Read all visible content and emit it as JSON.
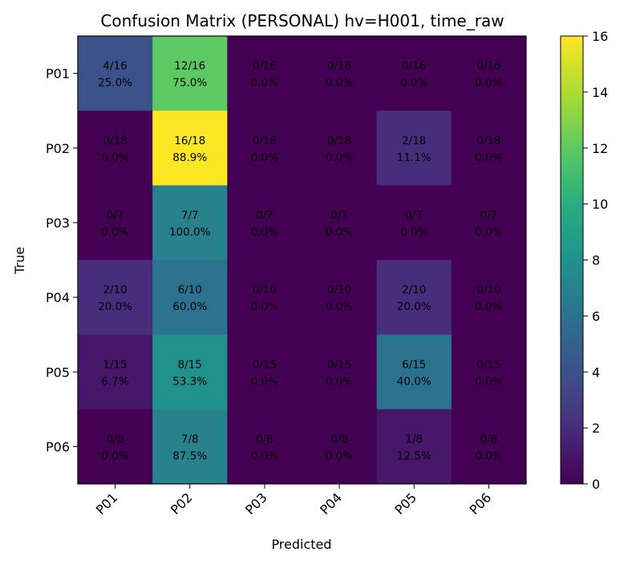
{
  "chart_data": {
    "type": "heatmap",
    "title": "Confusion Matrix (PERSONAL) hv=H001, time_raw",
    "xlabel": "Predicted",
    "ylabel": "True",
    "x_categories": [
      "P01",
      "P02",
      "P03",
      "P04",
      "P05",
      "P06"
    ],
    "y_categories": [
      "P01",
      "P02",
      "P03",
      "P04",
      "P05",
      "P06"
    ],
    "values": [
      [
        4,
        12,
        0,
        0,
        0,
        0
      ],
      [
        0,
        16,
        0,
        0,
        2,
        0
      ],
      [
        0,
        7,
        0,
        0,
        0,
        0
      ],
      [
        2,
        6,
        0,
        0,
        2,
        0
      ],
      [
        1,
        8,
        0,
        0,
        6,
        0
      ],
      [
        0,
        7,
        0,
        0,
        1,
        0
      ]
    ],
    "cell_labels": [
      [
        [
          "4/16",
          "25.0%"
        ],
        [
          "12/16",
          "75.0%"
        ],
        [
          "0/16",
          "0.0%"
        ],
        [
          "0/16",
          "0.0%"
        ],
        [
          "0/16",
          "0.0%"
        ],
        [
          "0/16",
          "0.0%"
        ]
      ],
      [
        [
          "0/18",
          "0.0%"
        ],
        [
          "16/18",
          "88.9%"
        ],
        [
          "0/18",
          "0.0%"
        ],
        [
          "0/18",
          "0.0%"
        ],
        [
          "2/18",
          "11.1%"
        ],
        [
          "0/18",
          "0.0%"
        ]
      ],
      [
        [
          "0/7",
          "0.0%"
        ],
        [
          "7/7",
          "100.0%"
        ],
        [
          "0/7",
          "0.0%"
        ],
        [
          "0/7",
          "0.0%"
        ],
        [
          "0/7",
          "0.0%"
        ],
        [
          "0/7",
          "0.0%"
        ]
      ],
      [
        [
          "2/10",
          "20.0%"
        ],
        [
          "6/10",
          "60.0%"
        ],
        [
          "0/10",
          "0.0%"
        ],
        [
          "0/10",
          "0.0%"
        ],
        [
          "2/10",
          "20.0%"
        ],
        [
          "0/10",
          "0.0%"
        ]
      ],
      [
        [
          "1/15",
          "6.7%"
        ],
        [
          "8/15",
          "53.3%"
        ],
        [
          "0/15",
          "0.0%"
        ],
        [
          "0/15",
          "0.0%"
        ],
        [
          "6/15",
          "40.0%"
        ],
        [
          "0/15",
          "0.0%"
        ]
      ],
      [
        [
          "0/8",
          "0.0%"
        ],
        [
          "7/8",
          "87.5%"
        ],
        [
          "0/8",
          "0.0%"
        ],
        [
          "0/8",
          "0.0%"
        ],
        [
          "1/8",
          "12.5%"
        ],
        [
          "0/8",
          "0.0%"
        ]
      ]
    ],
    "colormap": "viridis",
    "vmin": 0,
    "vmax": 16,
    "colorbar_ticks": [
      "0",
      "2",
      "4",
      "6",
      "8",
      "10",
      "12",
      "14",
      "16"
    ],
    "grid": false
  }
}
